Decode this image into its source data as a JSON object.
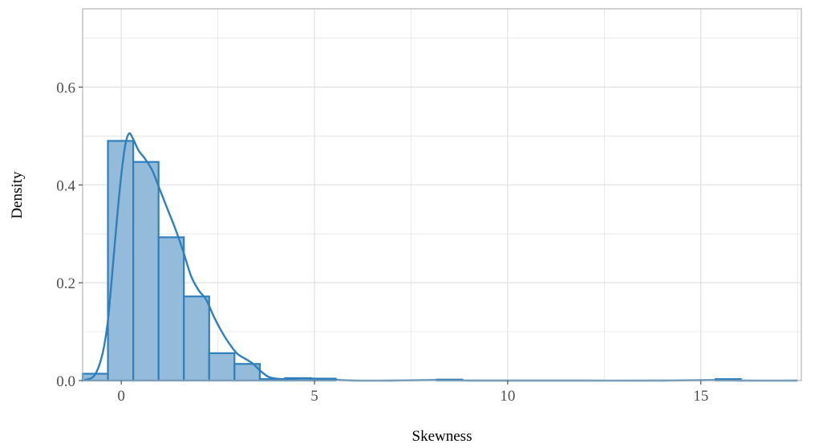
{
  "chart_data": {
    "type": "bar",
    "title": "",
    "xlabel": "Skewness",
    "ylabel": "Density",
    "xlim": [
      -1.0,
      17.6
    ],
    "ylim": [
      0,
      0.76
    ],
    "xticks": [
      0,
      5,
      10,
      15
    ],
    "xtick_labels": [
      "0",
      "5",
      "10",
      "15"
    ],
    "yticks": [
      0.0,
      0.2,
      0.4,
      0.6
    ],
    "ytick_labels": [
      "0.0",
      "0.2",
      "0.4",
      "0.6"
    ],
    "x_minor_gridlines": [
      2.5,
      7.5,
      12.5,
      17.5
    ],
    "y_minor_gridlines": [
      0.1,
      0.3,
      0.5,
      0.7
    ],
    "grid": true,
    "bin_width": 0.655,
    "bins": [
      {
        "start": -1.0,
        "end": -0.345,
        "density": 0.014
      },
      {
        "start": -0.345,
        "end": 0.31,
        "density": 0.49
      },
      {
        "start": 0.31,
        "end": 0.965,
        "density": 0.447
      },
      {
        "start": 0.965,
        "end": 1.62,
        "density": 0.293
      },
      {
        "start": 1.62,
        "end": 2.275,
        "density": 0.172
      },
      {
        "start": 2.275,
        "end": 2.93,
        "density": 0.056
      },
      {
        "start": 2.93,
        "end": 3.585,
        "density": 0.034
      },
      {
        "start": 3.585,
        "end": 4.24,
        "density": 0.003
      },
      {
        "start": 4.24,
        "end": 4.895,
        "density": 0.005
      },
      {
        "start": 4.895,
        "end": 5.55,
        "density": 0.004
      },
      {
        "start": 8.17,
        "end": 8.825,
        "density": 0.002
      },
      {
        "start": 15.38,
        "end": 16.035,
        "density": 0.003
      }
    ],
    "density_curve": {
      "x": [
        -0.95,
        -0.7,
        -0.5,
        -0.35,
        -0.2,
        -0.1,
        0.0,
        0.1,
        0.2,
        0.3,
        0.45,
        0.6,
        0.8,
        1.0,
        1.2,
        1.4,
        1.6,
        1.8,
        2.0,
        2.2,
        2.4,
        2.6,
        2.8,
        3.0,
        3.2,
        3.4,
        3.6,
        3.8,
        4.0,
        4.3,
        4.6,
        5.0,
        5.4,
        6.0,
        7.0,
        8.0,
        8.5,
        9.0,
        10.0,
        12.0,
        14.0,
        15.5,
        15.7,
        16.0,
        17.5
      ],
      "y": [
        0.001,
        0.01,
        0.05,
        0.12,
        0.25,
        0.34,
        0.42,
        0.48,
        0.505,
        0.495,
        0.47,
        0.455,
        0.43,
        0.39,
        0.35,
        0.31,
        0.265,
        0.215,
        0.185,
        0.165,
        0.13,
        0.1,
        0.075,
        0.055,
        0.045,
        0.035,
        0.02,
        0.008,
        0.004,
        0.003,
        0.004,
        0.004,
        0.002,
        0.0,
        0.0,
        0.001,
        0.001,
        0.0,
        0.0,
        0.0,
        0.0,
        0.001,
        0.001,
        0.0,
        0.0
      ]
    },
    "colors": {
      "bar_fill": "#95bbdb",
      "bar_stroke": "#2e7fbc",
      "curve": "#2e7fbc",
      "grid": "#e0e0e0",
      "panel_border": "#b3b3b3"
    }
  }
}
